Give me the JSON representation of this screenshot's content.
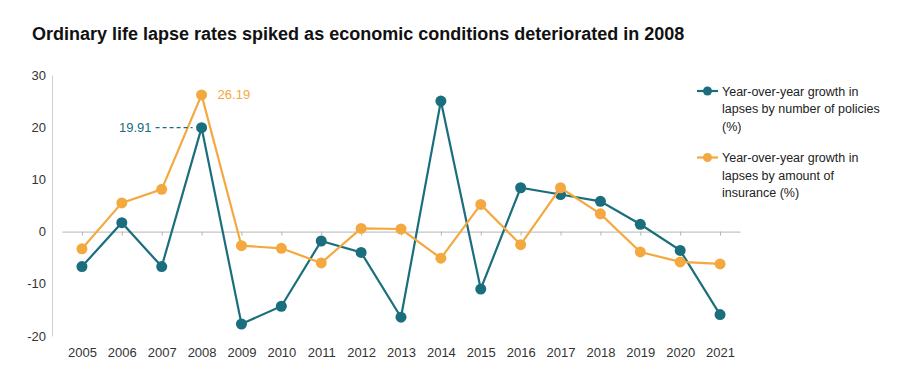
{
  "chart_data": {
    "type": "line",
    "title": "Ordinary life lapse rates spiked as economic conditions deteriorated in 2008",
    "categories": [
      "2005",
      "2006",
      "2007",
      "2008",
      "2009",
      "2010",
      "2011",
      "2012",
      "2013",
      "2014",
      "2015",
      "2016",
      "2017",
      "2018",
      "2019",
      "2020",
      "2021"
    ],
    "series": [
      {
        "name": "Year-over-year growth in lapses by number of policies (%)",
        "color": "#1b6e7d",
        "marker": "circle",
        "line_style": "solid",
        "values": [
          -6.7,
          1.7,
          -6.7,
          19.91,
          -17.7,
          -14.3,
          -1.8,
          -4.0,
          -16.4,
          25.0,
          -11.0,
          8.4,
          7.1,
          5.8,
          1.4,
          -3.6,
          -15.9
        ]
      },
      {
        "name": "Year-over-year growth in lapses by amount of insurance (%)",
        "color": "#f4a940",
        "marker": "circle",
        "line_style": "solid",
        "values": [
          -3.3,
          5.5,
          8.1,
          26.19,
          -2.7,
          -3.2,
          -6.0,
          0.6,
          0.5,
          -5.1,
          5.2,
          -2.5,
          8.4,
          3.4,
          -3.9,
          -5.8,
          -6.2
        ]
      }
    ],
    "annotations": [
      {
        "text": "19.91",
        "x": "2008",
        "y": 19.91
      },
      {
        "text": "26.19",
        "x": "2008",
        "y": 26.19
      }
    ],
    "ylim": [
      -20,
      30
    ],
    "yticks": [
      -20,
      -10,
      0,
      10,
      20,
      30
    ],
    "grid": false,
    "legend": "right"
  }
}
